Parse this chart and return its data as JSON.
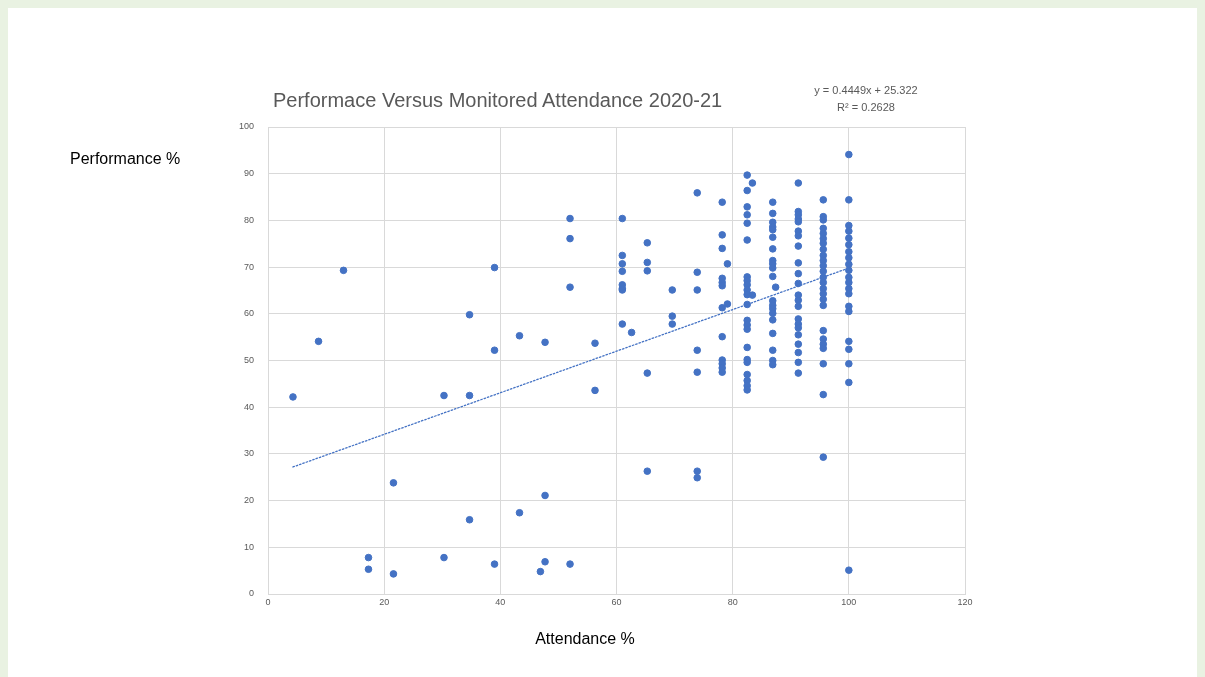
{
  "chart_data": {
    "type": "scatter",
    "title": "Performace Versus Monitored Attendance 2020-21",
    "xlabel": "Attendance %",
    "ylabel": "Performance %",
    "annotations": [
      "y = 0.4449x + 25.322",
      "R² = 0.2628"
    ],
    "xlim": [
      0,
      120
    ],
    "xticks": [
      0,
      20,
      40,
      60,
      80,
      100,
      120
    ],
    "ylim": [
      0,
      100
    ],
    "yticks": [
      0,
      10,
      20,
      30,
      40,
      50,
      60,
      70,
      80,
      90,
      100
    ],
    "grid": true,
    "series": [
      {
        "color": "#4472c4",
        "marker": "circle",
        "x": [
          4.3,
          8.7,
          13.0,
          17.3,
          17.3,
          21.6,
          21.6,
          30.3,
          30.3,
          34.7,
          34.7,
          34.7,
          39.0,
          39.0,
          39.0,
          43.3,
          43.3,
          47.7,
          47.7,
          47.7,
          46.9,
          52.0,
          52.0,
          52.0,
          52.0,
          56.3,
          56.3,
          61.0,
          61.0,
          61.0,
          61.0,
          61.0,
          61.0,
          61.0,
          61.0,
          62.6,
          65.3,
          65.3,
          65.3,
          65.3,
          65.3,
          69.6,
          69.6,
          69.6,
          73.9,
          73.9,
          73.9,
          73.9,
          73.9,
          73.9,
          73.9,
          78.2,
          78.2,
          78.2,
          78.2,
          78.2,
          78.2,
          78.2,
          78.2,
          78.2,
          78.2,
          78.2,
          78.2,
          79.1,
          79.1,
          82.5,
          82.5,
          82.5,
          82.5,
          82.5,
          82.5,
          82.5,
          82.5,
          82.5,
          82.5,
          82.5,
          82.5,
          82.5,
          82.5,
          82.5,
          82.5,
          82.5,
          82.5,
          82.5,
          82.5,
          82.5,
          82.5,
          83.4,
          83.4,
          86.9,
          86.9,
          86.9,
          86.9,
          86.9,
          86.9,
          86.9,
          86.9,
          86.9,
          86.9,
          86.9,
          86.9,
          86.9,
          86.9,
          86.9,
          86.9,
          86.9,
          86.9,
          86.9,
          86.9,
          87.4,
          91.3,
          91.3,
          91.3,
          91.3,
          91.3,
          91.3,
          91.3,
          91.3,
          91.3,
          91.3,
          91.3,
          91.3,
          91.3,
          91.3,
          91.3,
          91.3,
          91.3,
          91.3,
          91.3,
          91.3,
          91.3,
          91.3,
          95.6,
          95.6,
          95.6,
          95.6,
          95.6,
          95.6,
          95.6,
          95.6,
          95.6,
          95.6,
          95.6,
          95.6,
          95.6,
          95.6,
          95.6,
          95.6,
          95.6,
          95.6,
          95.6,
          95.6,
          95.6,
          95.6,
          95.6,
          95.6,
          95.6,
          100,
          100,
          100,
          100,
          100,
          100,
          100,
          100,
          100,
          100,
          100,
          100,
          100,
          100,
          100,
          100,
          100,
          100,
          100,
          100,
          100
        ],
        "values": [
          42.2,
          54.1,
          69.3,
          7.8,
          5.3,
          23.8,
          4.3,
          42.5,
          7.8,
          59.8,
          42.5,
          15.9,
          69.9,
          52.2,
          6.4,
          55.3,
          17.4,
          53.9,
          21.1,
          6.9,
          4.8,
          80.4,
          76.1,
          65.7,
          6.4,
          53.7,
          43.6,
          80.4,
          72.5,
          70.7,
          69.1,
          66.2,
          65.4,
          65.1,
          57.8,
          56.0,
          75.2,
          71.0,
          69.2,
          47.3,
          26.3,
          65.1,
          59.5,
          57.8,
          85.9,
          68.9,
          65.1,
          52.2,
          47.5,
          26.3,
          24.9,
          83.9,
          76.9,
          74.0,
          67.6,
          66.7,
          66.0,
          61.3,
          55.1,
          50.1,
          49.3,
          48.4,
          47.5,
          70.7,
          62.1,
          89.7,
          86.4,
          82.9,
          81.2,
          79.4,
          75.8,
          67.9,
          67.1,
          66.2,
          65.1,
          64.1,
          62.0,
          58.6,
          57.6,
          56.7,
          52.8,
          50.2,
          49.6,
          47.0,
          45.7,
          44.6,
          43.7,
          88.0,
          64.0,
          83.9,
          81.5,
          79.6,
          78.6,
          78.0,
          76.4,
          73.9,
          71.4,
          70.7,
          69.8,
          68.0,
          62.8,
          61.8,
          61.1,
          60.1,
          58.7,
          55.8,
          52.2,
          50.0,
          49.1,
          65.7,
          88.0,
          81.9,
          81.2,
          80.3,
          79.7,
          77.7,
          76.7,
          74.5,
          70.9,
          68.6,
          66.5,
          64.0,
          62.9,
          61.6,
          58.9,
          57.8,
          57.0,
          55.5,
          53.5,
          51.7,
          49.6,
          47.3,
          84.4,
          80.8,
          80.1,
          78.3,
          77.2,
          76.1,
          75.1,
          73.8,
          72.5,
          71.4,
          70.3,
          69.1,
          67.8,
          66.7,
          65.4,
          64.3,
          63.1,
          61.8,
          56.4,
          54.6,
          53.5,
          52.6,
          49.3,
          42.7,
          29.3,
          94.1,
          84.4,
          78.9,
          77.7,
          76.2,
          74.8,
          73.3,
          72.0,
          70.6,
          69.3,
          67.8,
          66.7,
          65.4,
          64.3,
          61.6,
          60.5,
          54.1,
          52.4,
          49.3,
          45.3,
          5.1
        ]
      },
      {
        "type": "line",
        "color": "#4472c4",
        "line_style": "dotted",
        "x": [
          4.3,
          100
        ],
        "values": [
          27.2,
          69.8
        ]
      }
    ]
  }
}
